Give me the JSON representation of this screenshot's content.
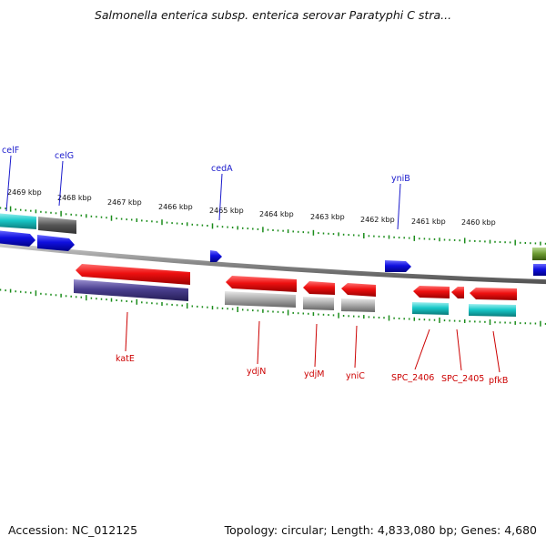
{
  "title": "Salmonella enterica subsp. enterica serovar Paratyphi C stra...",
  "footer": {
    "accession": "Accession: NC_012125",
    "stats": "Topology: circular; Length: 4,833,080 bp; Genes: 4,680"
  },
  "scale_labels": [
    "2469 kbp",
    "2468 kbp",
    "2467 kbp",
    "2466 kbp",
    "2465 kbp",
    "2464 kbp",
    "2463 kbp",
    "2462 kbp",
    "2461 kbp",
    "2460 kbp"
  ],
  "top_genes": [
    "celF",
    "celG",
    "cedA",
    "yniB"
  ],
  "bottom_genes": [
    "katE",
    "ydjN",
    "ydjM",
    "yniC",
    "SPC_2406",
    "SPC_2405",
    "pfkB"
  ],
  "colors": {
    "top_label": "#1a1acc",
    "bottom_label": "#cc0000",
    "forward_blue": "#1010e0",
    "reverse_red": "#ee1010",
    "cyan": "#18c8c8",
    "gray": "#999999",
    "purple": "#4a3f8f",
    "tick_green": "#1a8c1a"
  }
}
